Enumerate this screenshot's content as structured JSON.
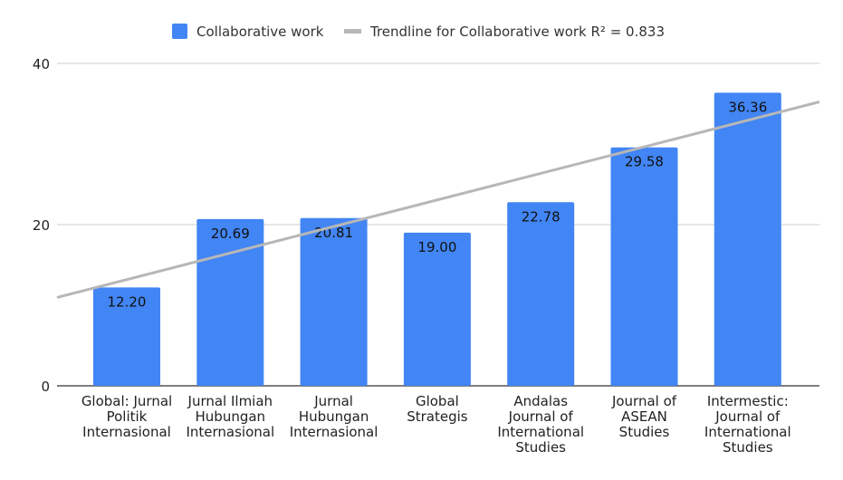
{
  "chart_data": {
    "type": "bar",
    "title": "",
    "xlabel": "",
    "ylabel": "",
    "ylim": [
      0,
      40
    ],
    "yticks": [
      0,
      20,
      40
    ],
    "grid": true,
    "legend_position": "top",
    "categories": [
      [
        "Global: Jurnal",
        "Politik",
        "Internasional"
      ],
      [
        "Jurnal Ilmiah",
        "Hubungan",
        "Internasional"
      ],
      [
        "Jurnal",
        "Hubungan",
        "Internasional"
      ],
      [
        "Global",
        "Strategis"
      ],
      [
        "Andalas",
        "Journal of",
        "International",
        "Studies"
      ],
      [
        "Journal of",
        "ASEAN",
        "Studies"
      ],
      [
        "Intermestic:",
        "Journal of",
        "International",
        "Studies"
      ]
    ],
    "series": [
      {
        "name": "Collaborative work",
        "color": "#4285f4",
        "values": [
          12.2,
          20.69,
          20.81,
          19.0,
          22.78,
          29.58,
          36.36
        ],
        "data_labels": [
          "12.20",
          "20.69",
          "20.81",
          "19.00",
          "22.78",
          "29.58",
          "36.36"
        ]
      }
    ],
    "trendline": {
      "name": "Trendline for Collaborative work R² = 0.833",
      "color": "#b7b7b7",
      "type": "linear"
    }
  }
}
